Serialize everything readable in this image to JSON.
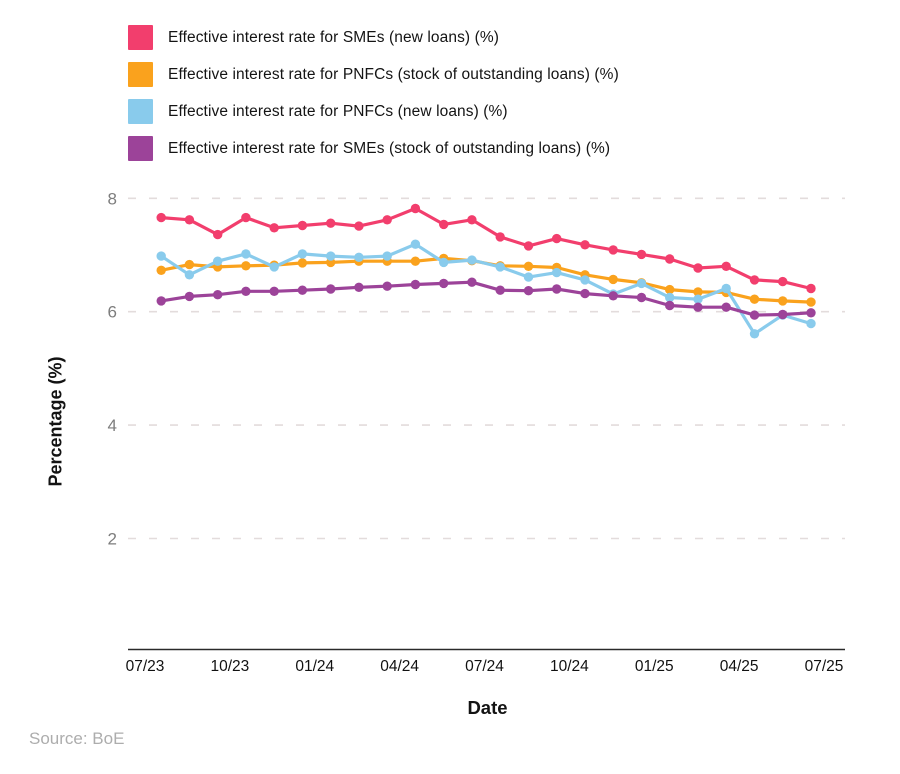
{
  "chart_data": {
    "type": "line",
    "title": "",
    "xlabel": "Date",
    "ylabel": "Percentage (%)",
    "source": "Source: BoE",
    "grid": "horizontal-dashed",
    "gridline_color": "#e3dcdc",
    "axis_line_color": "#2a2a2a",
    "legend_position": "top-left",
    "ylim": [
      0,
      8.35
    ],
    "y_ticks": [
      2,
      4,
      6,
      8
    ],
    "x_tick_labels": [
      "07/23",
      "10/23",
      "01/24",
      "04/24",
      "07/24",
      "10/24",
      "01/25",
      "04/25",
      "07/25"
    ],
    "x": [
      "07/23",
      "08/23",
      "09/23",
      "10/23",
      "11/23",
      "12/23",
      "01/24",
      "02/24",
      "03/24",
      "04/24",
      "05/24",
      "06/24",
      "07/24",
      "08/24",
      "09/24",
      "10/24",
      "11/24",
      "12/24",
      "01/25",
      "02/25",
      "03/25",
      "04/25",
      "05/25",
      "06/25"
    ],
    "series": [
      {
        "name": "Effective interest rate for SMEs (new loans) (%)",
        "color": "#F23E6D",
        "values": [
          7.66,
          7.62,
          7.36,
          7.66,
          7.48,
          7.52,
          7.56,
          7.51,
          7.62,
          7.82,
          7.54,
          7.62,
          7.32,
          7.16,
          7.29,
          7.18,
          7.09,
          7.01,
          6.93,
          6.77,
          6.8,
          6.56,
          6.53,
          6.41
        ]
      },
      {
        "name": "Effective interest rate for PNFCs (stock of outstanding loans) (%)",
        "color": "#FAA21D",
        "values": [
          6.73,
          6.83,
          6.79,
          6.81,
          6.82,
          6.86,
          6.87,
          6.89,
          6.89,
          6.89,
          6.94,
          6.9,
          6.81,
          6.8,
          6.78,
          6.65,
          6.57,
          6.51,
          6.39,
          6.35,
          6.34,
          6.22,
          6.19,
          6.17
        ]
      },
      {
        "name": "Effective interest rate for PNFCs (new loans) (%)",
        "color": "#89CBEC",
        "values": [
          6.98,
          6.65,
          6.89,
          7.02,
          6.79,
          7.02,
          6.98,
          6.96,
          6.98,
          7.19,
          6.87,
          6.91,
          6.79,
          6.61,
          6.69,
          6.56,
          6.31,
          6.5,
          6.25,
          6.22,
          6.41,
          5.61,
          5.94,
          5.79
        ]
      },
      {
        "name": "Effective interest rate for SMEs (stock of outstanding loans) (%)",
        "color": "#9C4399",
        "values": [
          6.19,
          6.27,
          6.3,
          6.36,
          6.36,
          6.38,
          6.4,
          6.43,
          6.45,
          6.48,
          6.5,
          6.52,
          6.38,
          6.37,
          6.4,
          6.32,
          6.28,
          6.25,
          6.11,
          6.08,
          6.08,
          5.94,
          5.95,
          5.98
        ]
      }
    ]
  }
}
